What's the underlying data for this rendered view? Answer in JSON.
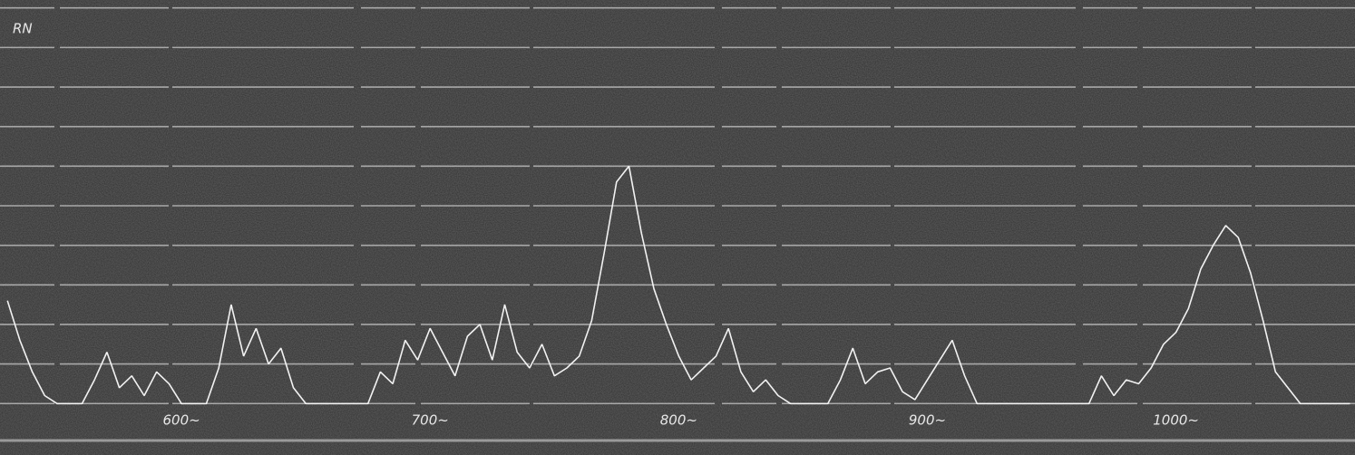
{
  "chart_data": {
    "type": "line",
    "annotation": "RN",
    "x": [
      530,
      535,
      540,
      545,
      550,
      555,
      560,
      565,
      570,
      575,
      580,
      585,
      590,
      595,
      600,
      605,
      610,
      615,
      620,
      625,
      630,
      635,
      640,
      645,
      650,
      655,
      660,
      665,
      670,
      675,
      680,
      685,
      690,
      695,
      700,
      705,
      710,
      715,
      720,
      725,
      730,
      735,
      740,
      745,
      750,
      755,
      760,
      765,
      770,
      775,
      780,
      785,
      790,
      795,
      800,
      805,
      810,
      815,
      820,
      825,
      830,
      835,
      840,
      845,
      850,
      855,
      860,
      865,
      870,
      875,
      880,
      885,
      890,
      895,
      900,
      905,
      910,
      915,
      920,
      925,
      930,
      935,
      940,
      945,
      950,
      955,
      960,
      965,
      970,
      975,
      980,
      985,
      990,
      995,
      1000,
      1005,
      1010,
      1015,
      1020,
      1025,
      1030,
      1035,
      1040,
      1045,
      1050,
      1055,
      1060,
      1065,
      1070
    ],
    "values": [
      2.6,
      1.6,
      0.8,
      0.2,
      0,
      0,
      0,
      0.6,
      1.3,
      0.4,
      0.7,
      0.2,
      0.8,
      0.5,
      0,
      0,
      0,
      0.9,
      2.5,
      1.2,
      1.9,
      1.0,
      1.4,
      0.4,
      0,
      0,
      0,
      0,
      0,
      0,
      0.8,
      0.5,
      1.6,
      1.1,
      1.9,
      1.3,
      0.7,
      1.7,
      2.0,
      1.1,
      2.5,
      1.3,
      0.9,
      1.5,
      0.7,
      0.9,
      1.2,
      2.1,
      3.8,
      5.6,
      6.0,
      4.3,
      2.9,
      2.0,
      1.2,
      0.6,
      0.9,
      1.2,
      1.9,
      0.8,
      0.3,
      0.6,
      0.2,
      0,
      0,
      0,
      0,
      0.6,
      1.4,
      0.5,
      0.8,
      0.9,
      0.3,
      0.1,
      0.6,
      1.1,
      1.6,
      0.7,
      0,
      0,
      0,
      0,
      0,
      0,
      0,
      0,
      0,
      0,
      0.7,
      0.2,
      0.6,
      0.5,
      0.9,
      1.5,
      1.8,
      2.4,
      3.4,
      4.0,
      4.5,
      4.2,
      3.3,
      2.1,
      0.8,
      0.4,
      0,
      0,
      0,
      0,
      0
    ],
    "color": "#f2f2f2",
    "xlim": [
      527,
      1072
    ],
    "xticks": [
      {
        "value": 600,
        "label": "600~"
      },
      {
        "value": 700,
        "label": "700~"
      },
      {
        "value": 800,
        "label": "800~"
      },
      {
        "value": 900,
        "label": "900~"
      },
      {
        "value": 1000,
        "label": "1000~"
      }
    ],
    "ylim": [
      -1.3,
      10.2
    ],
    "yticks": [
      0,
      1,
      2,
      3,
      4,
      5,
      6,
      7,
      8,
      9,
      10
    ],
    "grid": true
  }
}
